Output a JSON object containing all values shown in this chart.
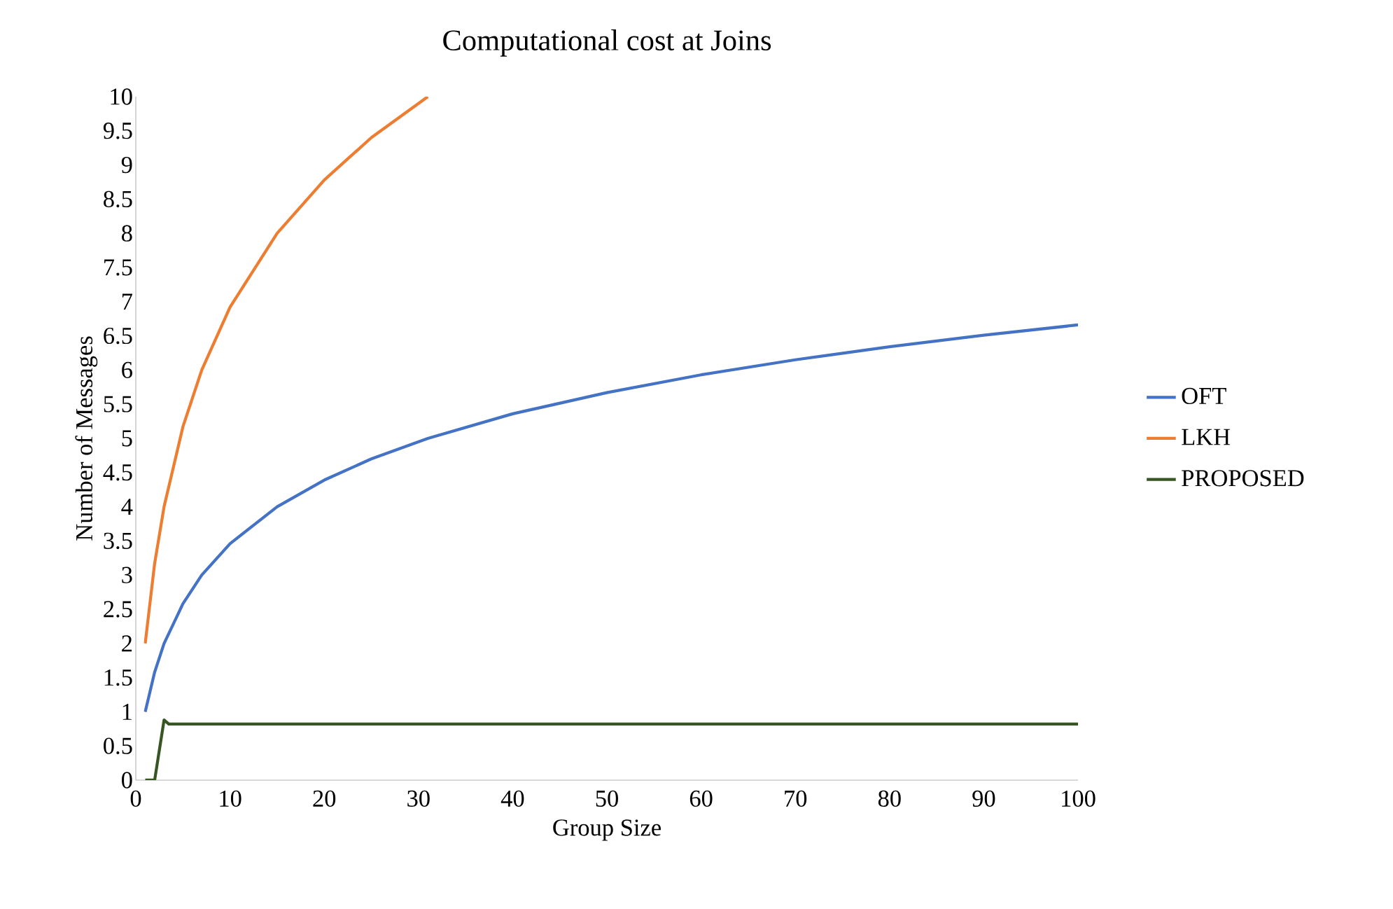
{
  "chart_data": {
    "type": "line",
    "title": "Computational cost at Joins",
    "xlabel": "Group Size",
    "ylabel": "Number of Messages",
    "xlim": [
      0,
      100
    ],
    "xticks": [
      0,
      10,
      20,
      30,
      40,
      50,
      60,
      70,
      80,
      90,
      100
    ],
    "ylim": [
      0,
      10
    ],
    "yticks": [
      0,
      0.5,
      1,
      1.5,
      2,
      2.5,
      3,
      3.5,
      4,
      4.5,
      5,
      5.5,
      6,
      6.5,
      7,
      7.5,
      8,
      8.5,
      9,
      9.5,
      10
    ],
    "grid": false,
    "legend": "right",
    "marker": "none",
    "line_style": "solid",
    "series": [
      {
        "name": "OFT",
        "color": "#4472c4",
        "x": [
          1,
          2,
          3,
          5,
          7,
          10,
          15,
          20,
          25,
          31,
          40,
          50,
          60,
          70,
          80,
          90,
          100
        ],
        "values": [
          1,
          1.58,
          2,
          2.58,
          3,
          3.46,
          4,
          4.39,
          4.7,
          5,
          5.36,
          5.67,
          5.93,
          6.15,
          6.34,
          6.51,
          6.66
        ]
      },
      {
        "name": "LKH",
        "color": "#ed7d31",
        "x": [
          1,
          2,
          3,
          5,
          7,
          10,
          15,
          20,
          25,
          31
        ],
        "values": [
          2,
          3.17,
          4,
          5.17,
          6,
          6.92,
          8,
          8.78,
          9.4,
          10
        ]
      },
      {
        "name": "PROPOSED",
        "color": "#375623",
        "x": [
          1,
          2,
          3,
          3.5,
          4,
          100
        ],
        "values": [
          0,
          0,
          0.88,
          0.82,
          0.82,
          0.82
        ]
      }
    ]
  }
}
